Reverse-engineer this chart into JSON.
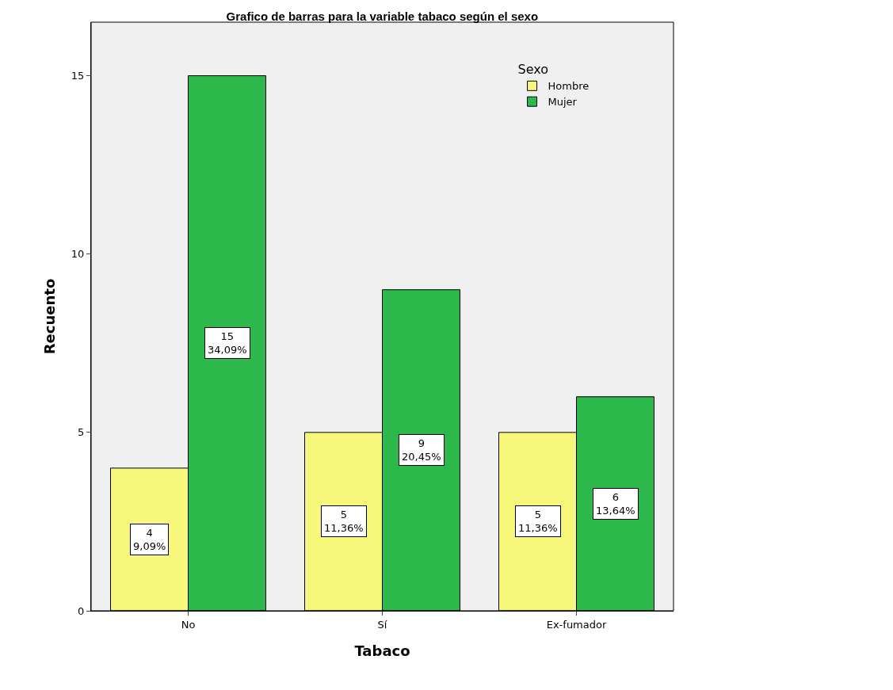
{
  "chart_data": {
    "type": "bar",
    "title": "Grafico de barras para la variable tabaco según el sexo",
    "xlabel": "Tabaco",
    "ylabel": "Recuento",
    "legend_title": "Sexo",
    "categories": [
      "No",
      "Sí",
      "Ex-fumador"
    ],
    "series": [
      {
        "name": "Hombre",
        "color": "#f7f77b",
        "values": [
          4,
          5,
          5
        ],
        "value_labels": [
          "4\n9,09%",
          "5\n11,36%",
          "5\n11,36%"
        ]
      },
      {
        "name": "Mujer",
        "color": "#2db84b",
        "values": [
          15,
          9,
          6
        ],
        "value_labels": [
          "15\n34,09%",
          "9\n20,45%",
          "6\n13,64%"
        ]
      }
    ],
    "ylim": [
      0,
      16.5
    ],
    "yticks": [
      0,
      5,
      10,
      15
    ],
    "grid": false,
    "legend": "top right"
  }
}
